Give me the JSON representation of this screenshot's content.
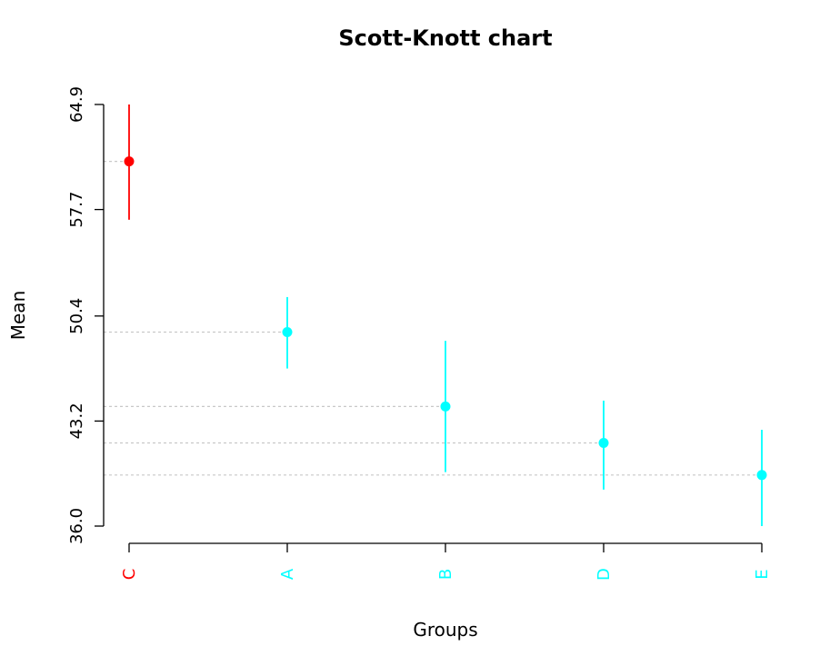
{
  "chart_data": {
    "type": "scatter",
    "title": "Scott-Knott chart",
    "xlabel": "Groups",
    "ylabel": "Mean",
    "ylim": [
      36.0,
      64.9
    ],
    "yticks": [
      "36.0",
      "43.2",
      "50.4",
      "57.7",
      "64.9"
    ],
    "ytick_values": [
      36.0,
      43.2,
      50.4,
      57.7,
      64.9
    ],
    "categories": [
      "C",
      "A",
      "B",
      "D",
      "E"
    ],
    "means": [
      61.0,
      49.3,
      44.2,
      41.7,
      39.5
    ],
    "lower": [
      57.0,
      46.8,
      39.7,
      38.5,
      36.0
    ],
    "upper": [
      64.9,
      51.7,
      48.7,
      44.6,
      42.6
    ],
    "category_colors": [
      "#ff0000",
      "#00ffff",
      "#00ffff",
      "#00ffff",
      "#00ffff"
    ],
    "grid": "dotted horizontal reference lines at each mean"
  }
}
